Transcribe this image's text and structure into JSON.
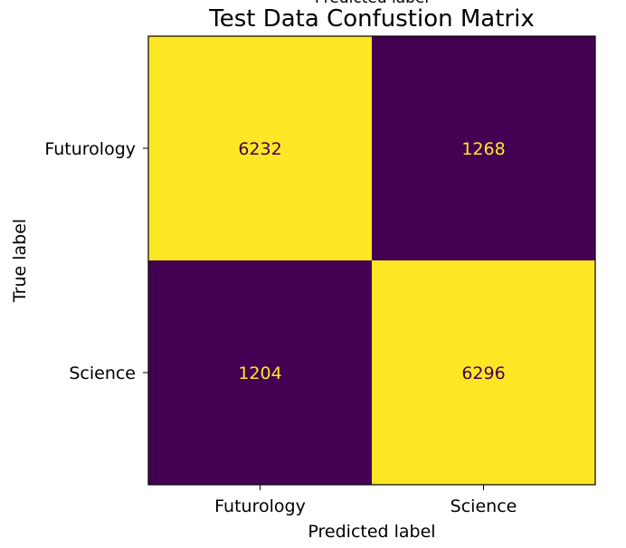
{
  "chart_data": {
    "type": "heatmap",
    "title": "Test Data Confustion Matrix",
    "title_cut_above": "Predicted label",
    "xlabel": "Predicted label",
    "ylabel": "True label",
    "x_categories": [
      "Futurology",
      "Science"
    ],
    "y_categories": [
      "Futurology",
      "Science"
    ],
    "values": [
      [
        6232,
        1268
      ],
      [
        1204,
        6296
      ]
    ],
    "colormap": "viridis",
    "colors": {
      "high": "#fde725",
      "low": "#440154",
      "text_on_high": "#440154",
      "text_on_low": "#fde725"
    }
  }
}
